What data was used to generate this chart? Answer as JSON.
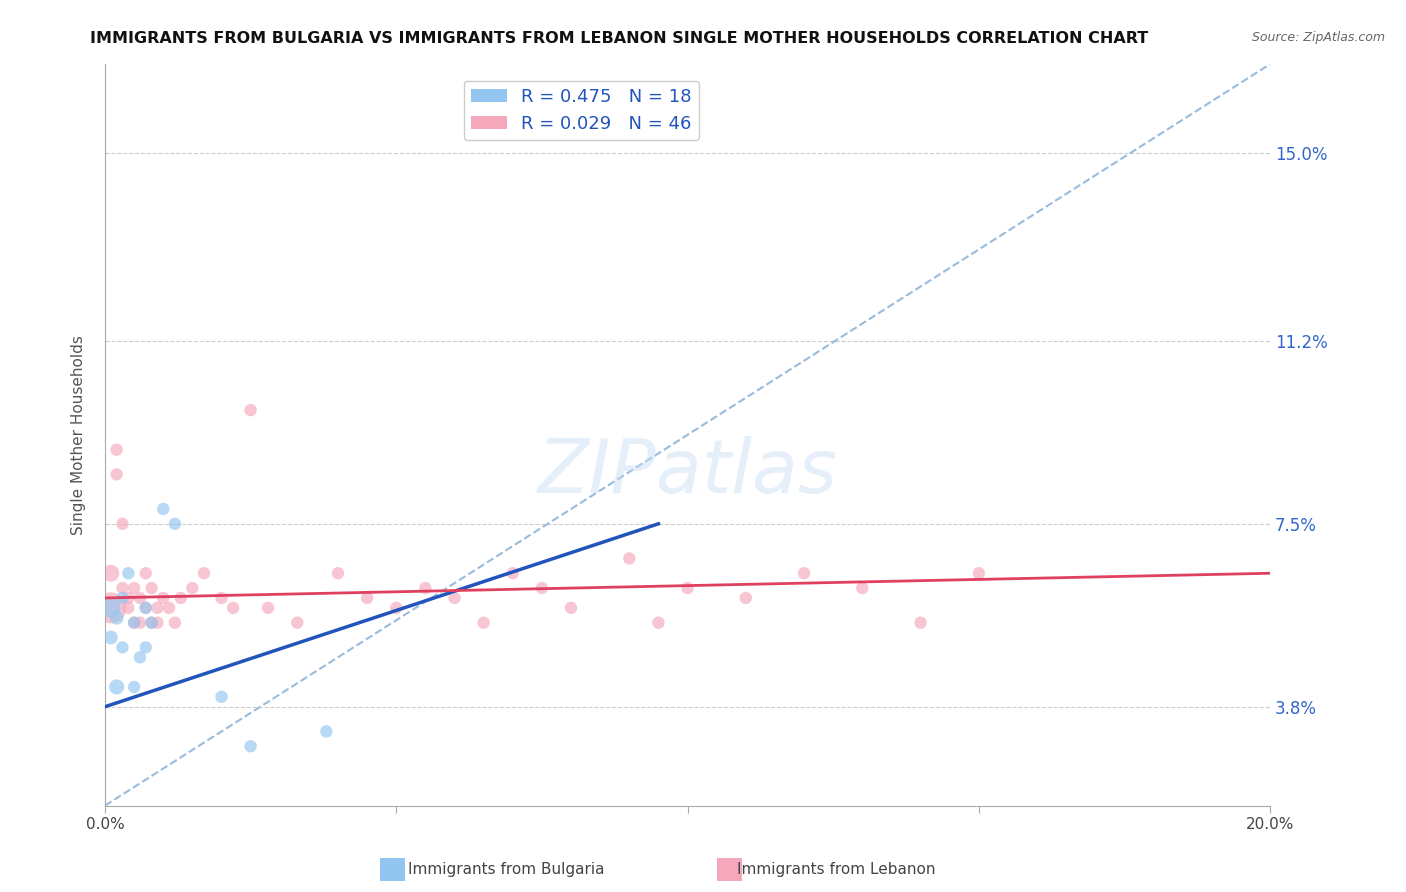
{
  "title": "IMMIGRANTS FROM BULGARIA VS IMMIGRANTS FROM LEBANON SINGLE MOTHER HOUSEHOLDS CORRELATION CHART",
  "source": "Source: ZipAtlas.com",
  "ylabel": "Single Mother Households",
  "xlim": [
    0.0,
    0.2
  ],
  "ylim": [
    0.018,
    0.168
  ],
  "ytick_labels_right": [
    "3.8%",
    "7.5%",
    "11.2%",
    "15.0%"
  ],
  "ytick_values": [
    0.038,
    0.075,
    0.112,
    0.15
  ],
  "grid_color": "#cccccc",
  "background_color": "#ffffff",
  "bulgaria_color": "#92c5f0",
  "lebanon_color": "#f5a8bc",
  "bulgaria_line_color": "#2255bb",
  "lebanon_line_color": "#e04060",
  "diagonal_color": "#99bbdd",
  "bulgaria_R": 0.475,
  "bulgaria_N": 18,
  "lebanon_R": 0.029,
  "lebanon_N": 46,
  "bulgaria_scatter_x": [
    0.001,
    0.001,
    0.002,
    0.002,
    0.003,
    0.003,
    0.004,
    0.005,
    0.005,
    0.006,
    0.007,
    0.007,
    0.008,
    0.01,
    0.012,
    0.02,
    0.025,
    0.038
  ],
  "bulgaria_scatter_y": [
    0.058,
    0.052,
    0.056,
    0.042,
    0.06,
    0.05,
    0.065,
    0.055,
    0.042,
    0.048,
    0.058,
    0.05,
    0.055,
    0.078,
    0.075,
    0.04,
    0.03,
    0.033
  ],
  "bulgaria_scatter_size": [
    200,
    100,
    100,
    120,
    80,
    80,
    80,
    80,
    80,
    80,
    80,
    80,
    80,
    80,
    80,
    80,
    80,
    80
  ],
  "lebanon_scatter_x": [
    0.001,
    0.001,
    0.002,
    0.002,
    0.003,
    0.003,
    0.004,
    0.004,
    0.005,
    0.005,
    0.006,
    0.006,
    0.007,
    0.007,
    0.008,
    0.008,
    0.009,
    0.009,
    0.01,
    0.011,
    0.012,
    0.013,
    0.015,
    0.017,
    0.02,
    0.022,
    0.025,
    0.028,
    0.033,
    0.04,
    0.045,
    0.05,
    0.055,
    0.06,
    0.065,
    0.07,
    0.075,
    0.08,
    0.09,
    0.095,
    0.1,
    0.11,
    0.12,
    0.13,
    0.14,
    0.15
  ],
  "lebanon_scatter_y": [
    0.058,
    0.065,
    0.085,
    0.09,
    0.075,
    0.062,
    0.06,
    0.058,
    0.062,
    0.055,
    0.06,
    0.055,
    0.058,
    0.065,
    0.055,
    0.062,
    0.058,
    0.055,
    0.06,
    0.058,
    0.055,
    0.06,
    0.062,
    0.065,
    0.06,
    0.058,
    0.098,
    0.058,
    0.055,
    0.065,
    0.06,
    0.058,
    0.062,
    0.06,
    0.055,
    0.065,
    0.062,
    0.058,
    0.068,
    0.055,
    0.062,
    0.06,
    0.065,
    0.062,
    0.055,
    0.065
  ],
  "lebanon_scatter_size": [
    500,
    150,
    80,
    80,
    80,
    80,
    80,
    80,
    80,
    80,
    80,
    80,
    80,
    80,
    80,
    80,
    80,
    80,
    80,
    80,
    80,
    80,
    80,
    80,
    80,
    80,
    80,
    80,
    80,
    80,
    80,
    80,
    80,
    80,
    80,
    80,
    80,
    80,
    80,
    80,
    80,
    80,
    80,
    80,
    80,
    80
  ],
  "bul_line_x": [
    0.0,
    0.095
  ],
  "bul_line_y": [
    0.038,
    0.075
  ],
  "leb_line_x": [
    0.0,
    0.2
  ],
  "leb_line_y": [
    0.06,
    0.065
  ],
  "diag_line_x": [
    0.0,
    0.2
  ],
  "diag_line_y": [
    0.018,
    0.168
  ]
}
